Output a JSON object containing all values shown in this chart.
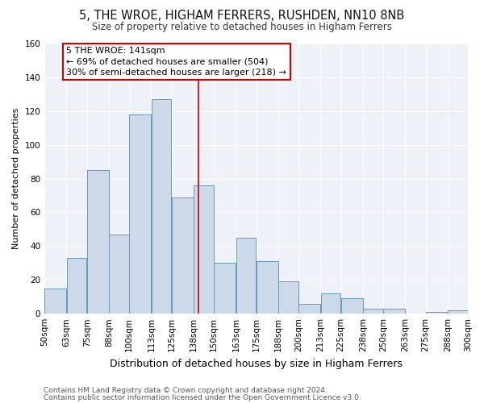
{
  "title": "5, THE WROE, HIGHAM FERRERS, RUSHDEN, NN10 8NB",
  "subtitle": "Size of property relative to detached houses in Higham Ferrers",
  "xlabel": "Distribution of detached houses by size in Higham Ferrers",
  "ylabel": "Number of detached properties",
  "bar_edges": [
    50,
    63,
    75,
    88,
    100,
    113,
    125,
    138,
    150,
    163,
    175,
    188,
    200,
    213,
    225,
    238,
    250,
    263,
    275,
    288,
    300
  ],
  "bar_heights": [
    15,
    33,
    85,
    47,
    118,
    127,
    69,
    76,
    30,
    45,
    31,
    19,
    6,
    12,
    9,
    3,
    3,
    0,
    1,
    2
  ],
  "bar_color": "#ccd9e8",
  "bar_edgecolor": "#6699bb",
  "property_size": 141,
  "annotation_text": "5 THE WROE: 141sqm\n← 69% of detached houses are smaller (504)\n30% of semi-detached houses are larger (218) →",
  "annotation_box_edgecolor": "#cc0000",
  "vline_color": "#cc0000",
  "ylim": [
    0,
    160
  ],
  "yticks": [
    0,
    20,
    40,
    60,
    80,
    100,
    120,
    140,
    160
  ],
  "background_color": "#eef2f8",
  "footer_line1": "Contains HM Land Registry data © Crown copyright and database right 2024.",
  "footer_line2": "Contains public sector information licensed under the Open Government Licence v3.0.",
  "title_fontsize": 10.5,
  "subtitle_fontsize": 8.5,
  "xlabel_fontsize": 9,
  "ylabel_fontsize": 8,
  "annotation_fontsize": 8,
  "footer_fontsize": 6.5,
  "tick_fontsize": 7.5
}
